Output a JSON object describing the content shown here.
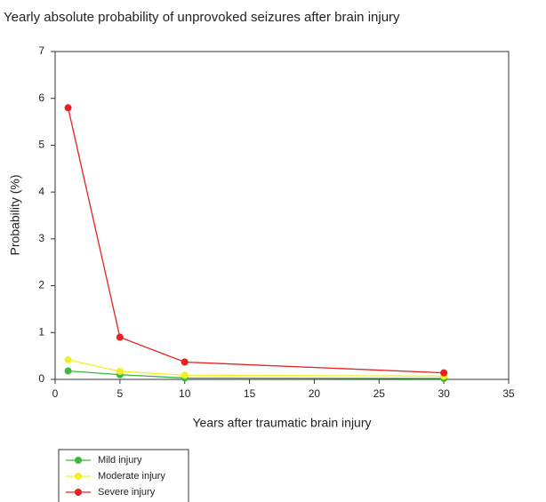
{
  "chart_data": {
    "type": "line",
    "title": "Yearly absolute probability of unprovoked seizures after brain injury",
    "x_label": "Years after traumatic brain injury",
    "y_label": "Probability (%)",
    "x": [
      1,
      5,
      10,
      30
    ],
    "series": [
      {
        "name": "Mild injury",
        "color": "#3cb83c",
        "values": [
          0.18,
          0.1,
          0.03,
          0.02
        ]
      },
      {
        "name": "Moderate injury",
        "color": "#f0f020",
        "values": [
          0.42,
          0.17,
          0.09,
          0.07
        ]
      },
      {
        "name": "Severe injury",
        "color": "#e82020",
        "values": [
          5.8,
          0.9,
          0.37,
          0.14
        ]
      }
    ],
    "xlim": [
      0,
      35
    ],
    "xticks": [
      0,
      5,
      10,
      15,
      20,
      25,
      30,
      35
    ],
    "ylim": [
      0,
      7
    ],
    "yticks": [
      0,
      1,
      2,
      3,
      4,
      5,
      6,
      7
    ],
    "grid": false,
    "legend": "bottom-left"
  }
}
